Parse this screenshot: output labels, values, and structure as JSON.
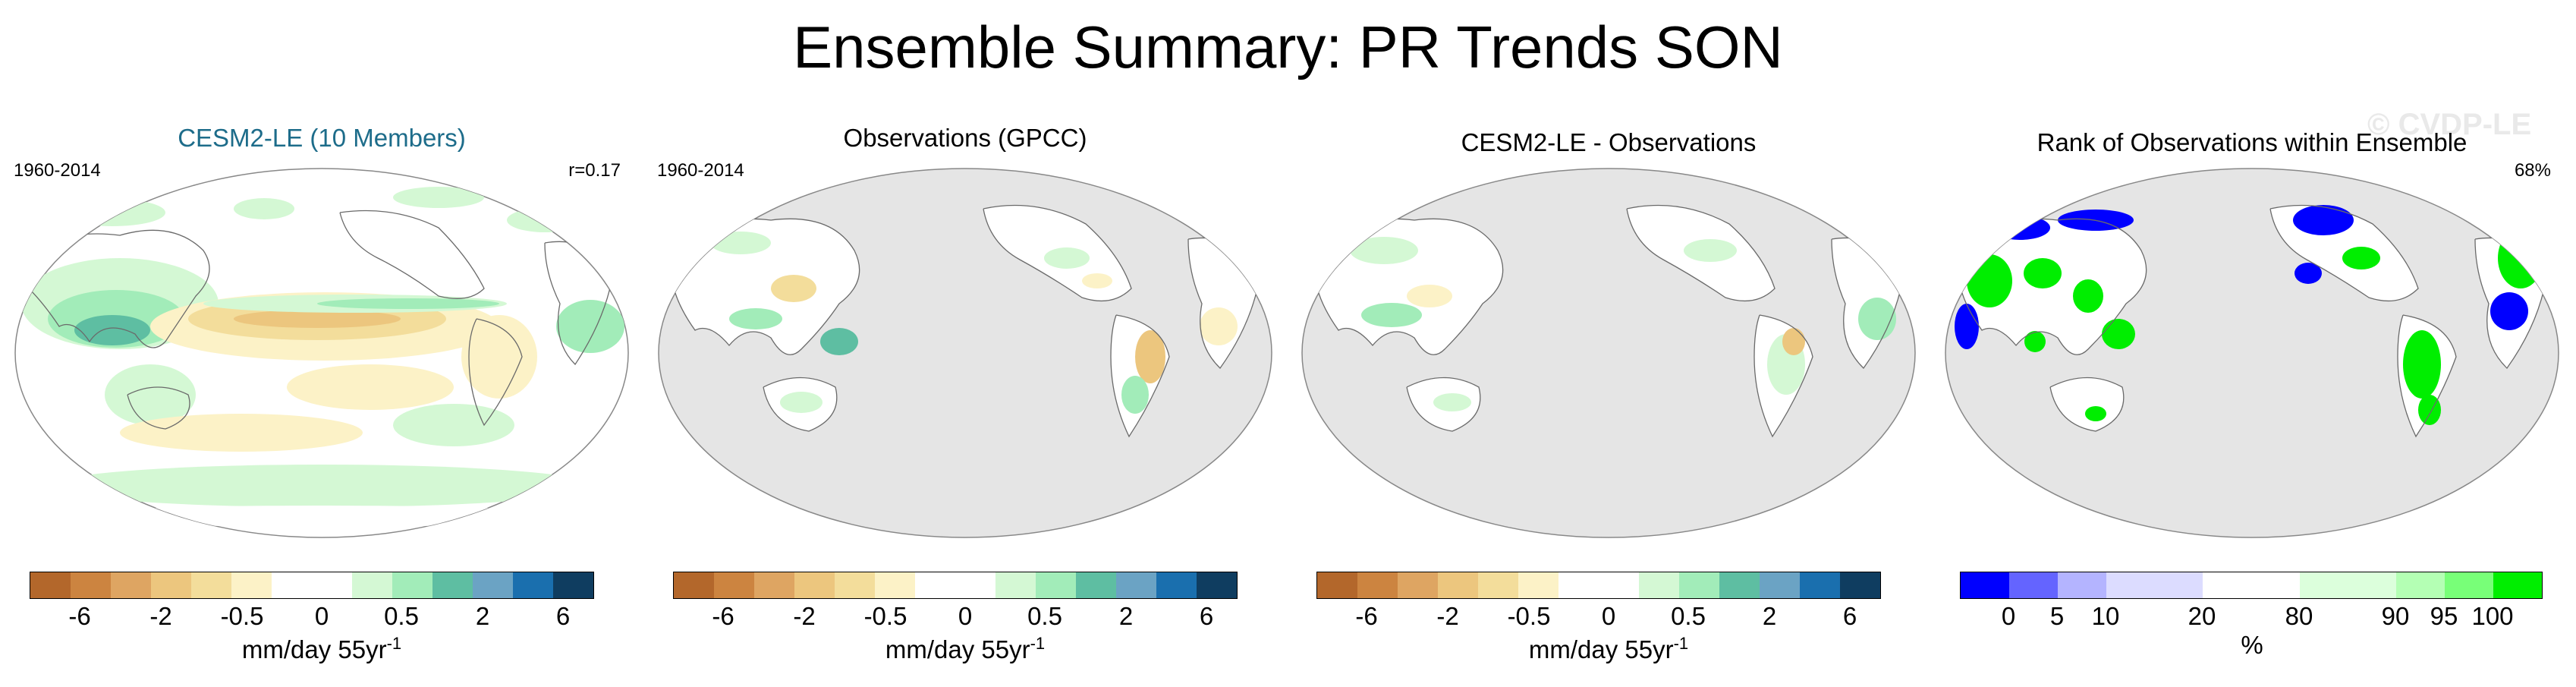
{
  "title": "Ensemble Summary: PR Trends SON",
  "watermark": "© CVDP-LE",
  "panels": [
    {
      "title": "CESM2-LE (10 Members)",
      "left": "1960-2014",
      "right": "r=0.17"
    },
    {
      "title": "Observations (GPCC)",
      "left": "1960-2014",
      "right": ""
    },
    {
      "title": "CESM2-LE - Observations",
      "left": "",
      "right": ""
    },
    {
      "title": "Rank of Observations within Ensemble",
      "left": "",
      "right": "68%"
    }
  ],
  "trend_colorbar": {
    "colors": [
      "#b3672b",
      "#cc8440",
      "#dea562",
      "#ecc67e",
      "#f3dd9b",
      "#fcf2c7",
      "#ffffff",
      "#ffffff",
      "#d4f8d4",
      "#a2ecb9",
      "#5ebea2",
      "#6ba3c4",
      "#1a6fae",
      "#0f3d60"
    ],
    "labels": [
      "-6",
      "-2",
      "-0.5",
      "0",
      "0.5",
      "2",
      "6"
    ],
    "units": "mm/day 55yr",
    "units_sup": "-1"
  },
  "rank_colorbar": {
    "colors": [
      "#0000ff",
      "#6464ff",
      "#b4b4ff",
      "#dcdcff",
      "#ffffff",
      "#ffffff",
      "#dcffdc",
      "#b4ffb4",
      "#78ff78",
      "#00ee00"
    ],
    "labels": [
      "0",
      "5",
      "10",
      "20",
      "80",
      "90",
      "95",
      "100"
    ],
    "units": "%"
  },
  "map_colors": {
    "ocean": "#e5e5e5",
    "land_model": "#ffffff",
    "coast": "#6a6a6a"
  }
}
